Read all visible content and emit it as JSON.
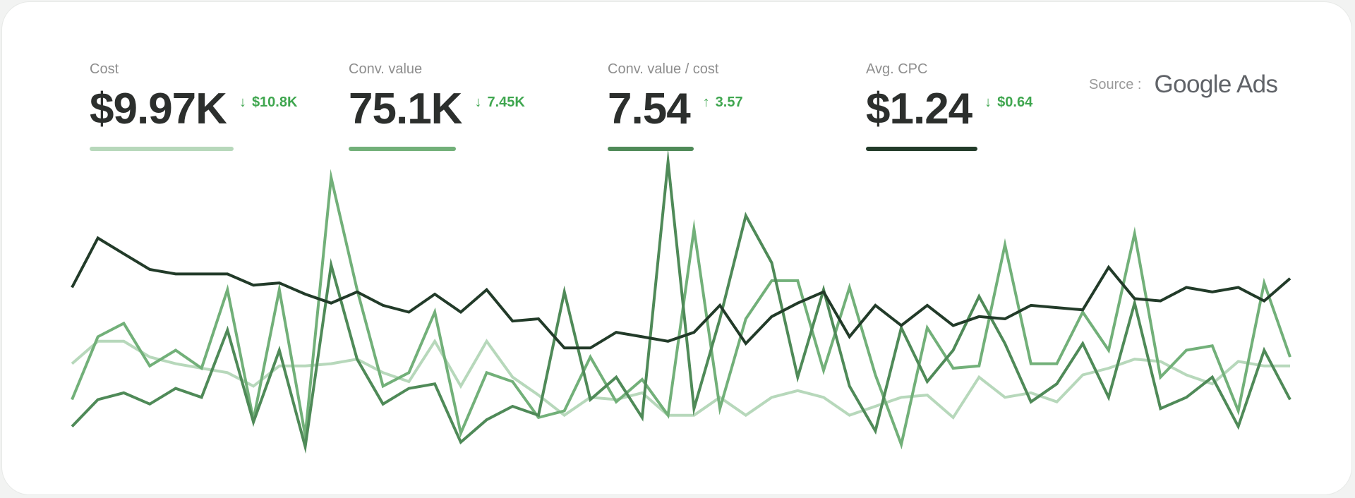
{
  "metrics": [
    {
      "label": "Cost",
      "value": "$9.97K",
      "direction": "down",
      "delta": "$10.8K",
      "color": "#b7d8bb"
    },
    {
      "label": "Conv. value",
      "value": "75.1K",
      "direction": "down",
      "delta": "7.45K",
      "color": "#72b079"
    },
    {
      "label": "Conv. value / cost",
      "value": "7.54",
      "direction": "up",
      "delta": "3.57",
      "color": "#4f8a58"
    },
    {
      "label": "Avg. CPC",
      "value": "$1.24",
      "direction": "down",
      "delta": "$0.64",
      "color": "#223b29"
    }
  ],
  "source": {
    "label": "Source :",
    "brand": "Google Ads"
  },
  "icons": {
    "down": "arrow-down-icon",
    "up": "arrow-up-icon"
  },
  "colors": {
    "delta": "#3fa64f"
  },
  "chart_data": {
    "type": "line",
    "x": [
      0,
      1,
      2,
      3,
      4,
      5,
      6,
      7,
      8,
      9,
      10,
      11,
      12,
      13,
      14,
      15,
      16,
      17,
      18,
      19,
      20,
      21,
      22,
      23,
      24,
      25,
      26,
      27,
      28,
      29,
      30,
      31,
      32,
      33,
      34,
      35,
      36,
      37,
      38,
      39,
      40,
      41,
      42,
      43,
      44,
      45,
      46,
      47
    ],
    "ylim": [
      0,
      110
    ],
    "grid": true,
    "grid_lines": [
      0,
      25,
      50,
      75,
      100
    ],
    "series": [
      {
        "color": "#b7d8bb",
        "values": [
          30,
          40,
          40,
          33,
          30,
          28,
          26,
          20,
          29,
          29,
          30,
          32,
          26,
          22,
          40,
          20,
          40,
          24,
          16,
          7,
          15,
          14,
          17,
          7,
          7,
          15,
          7,
          15,
          18,
          15,
          7,
          11,
          15,
          16,
          6,
          24,
          15,
          17,
          13,
          25,
          28,
          32,
          31,
          25,
          21,
          31,
          29,
          29
        ]
      },
      {
        "color": "#72b079",
        "values": [
          14,
          42,
          48,
          29,
          36,
          28,
          63,
          5,
          63,
          -2,
          113,
          63,
          20,
          26,
          53,
          -1,
          26,
          22,
          6,
          9,
          33,
          13,
          23,
          7,
          90,
          10,
          50,
          67,
          67,
          27,
          64,
          25,
          -6,
          46,
          28,
          29,
          83,
          30,
          30,
          53,
          36,
          88,
          24,
          36,
          38,
          9,
          66,
          33
        ]
      },
      {
        "color": "#4f8a58",
        "values": [
          2,
          14,
          17,
          12,
          19,
          15,
          45,
          4,
          36,
          -7,
          74,
          32,
          12,
          19,
          21,
          -5,
          5,
          11,
          7,
          62,
          14,
          24,
          6,
          120,
          10,
          50,
          96,
          75,
          24,
          63,
          20,
          0,
          46,
          22,
          36,
          60,
          39,
          13,
          21,
          39,
          15,
          57,
          10,
          15,
          24,
          2,
          36,
          14
        ]
      },
      {
        "color": "#223b29",
        "values": [
          64,
          86,
          79,
          72,
          70,
          70,
          70,
          65,
          66,
          61,
          57,
          62,
          56,
          53,
          61,
          53,
          63,
          49,
          50,
          37,
          37,
          44,
          42,
          40,
          44,
          56,
          39,
          51,
          57,
          62,
          42,
          56,
          47,
          56,
          47,
          51,
          50,
          56,
          55,
          54,
          73,
          59,
          58,
          64,
          62,
          64,
          58,
          68
        ]
      }
    ]
  }
}
